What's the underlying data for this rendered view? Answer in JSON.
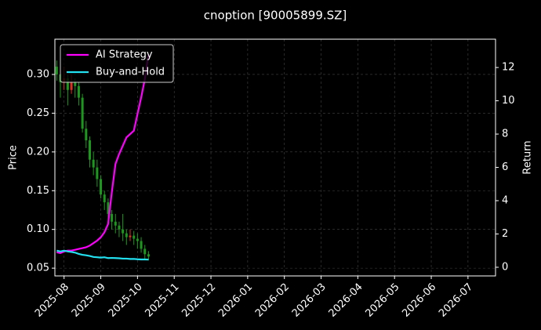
{
  "chart_data": {
    "type": "candlestick",
    "title": "cnoption [90005899.SZ]",
    "ylabel": "Price",
    "y2label": "Return",
    "x": [
      -0.2,
      -0.1,
      0,
      0.1,
      0.2,
      0.3,
      0.4,
      0.5,
      0.6,
      0.7,
      0.8,
      0.9,
      1.0,
      1.1,
      1.2,
      1.3,
      1.4,
      1.5,
      1.6,
      1.7,
      1.8,
      1.9,
      2.0,
      2.1,
      2.2,
      2.3
    ],
    "xlim": [
      -0.25,
      11.75
    ],
    "xticks": [
      {
        "value": 0,
        "label": "2025-08"
      },
      {
        "value": 1,
        "label": "2025-09"
      },
      {
        "value": 2,
        "label": "2025-10"
      },
      {
        "value": 3,
        "label": "2025-11"
      },
      {
        "value": 4,
        "label": "2025-12"
      },
      {
        "value": 5,
        "label": "2026-01"
      },
      {
        "value": 6,
        "label": "2026-02"
      },
      {
        "value": 7,
        "label": "2026-03"
      },
      {
        "value": 8,
        "label": "2026-04"
      },
      {
        "value": 9,
        "label": "2026-05"
      },
      {
        "value": 10,
        "label": "2026-06"
      },
      {
        "value": 11,
        "label": "2026-07"
      }
    ],
    "ylim": [
      0.04,
      0.3455
    ],
    "yticks": [
      {
        "value": 0.05,
        "label": "0.05"
      },
      {
        "value": 0.1,
        "label": "0.10"
      },
      {
        "value": 0.15,
        "label": "0.15"
      },
      {
        "value": 0.2,
        "label": "0.20"
      },
      {
        "value": 0.25,
        "label": "0.25"
      },
      {
        "value": 0.3,
        "label": "0.30"
      }
    ],
    "y2lim": [
      -0.52,
      13.7
    ],
    "y2ticks": [
      0,
      2,
      4,
      6,
      8,
      10,
      12
    ],
    "grid": true,
    "legend": "upper left",
    "up_color": "#e03020",
    "down_color": "#1a9a1a",
    "candles": {
      "open": [
        0.31,
        0.3,
        0.29,
        0.295,
        0.28,
        0.29,
        0.285,
        0.27,
        0.23,
        0.215,
        0.19,
        0.18,
        0.165,
        0.145,
        0.135,
        0.12,
        0.11,
        0.105,
        0.1,
        0.095,
        0.09,
        0.092,
        0.088,
        0.085,
        0.075,
        0.068
      ],
      "high": [
        0.318,
        0.305,
        0.31,
        0.3,
        0.3,
        0.295,
        0.29,
        0.275,
        0.24,
        0.22,
        0.2,
        0.19,
        0.17,
        0.15,
        0.14,
        0.125,
        0.12,
        0.11,
        0.12,
        0.1,
        0.1,
        0.098,
        0.095,
        0.09,
        0.08,
        0.072
      ],
      "low": [
        0.292,
        0.27,
        0.28,
        0.26,
        0.275,
        0.27,
        0.26,
        0.225,
        0.205,
        0.18,
        0.17,
        0.155,
        0.14,
        0.125,
        0.11,
        0.1,
        0.095,
        0.09,
        0.085,
        0.08,
        0.085,
        0.08,
        0.075,
        0.07,
        0.062,
        0.06
      ],
      "close": [
        0.3,
        0.29,
        0.295,
        0.28,
        0.29,
        0.285,
        0.27,
        0.23,
        0.215,
        0.19,
        0.18,
        0.165,
        0.145,
        0.135,
        0.12,
        0.11,
        0.105,
        0.1,
        0.095,
        0.09,
        0.092,
        0.088,
        0.085,
        0.075,
        0.068,
        0.065
      ]
    },
    "series": [
      {
        "name": "AI Strategy",
        "color": "#ff00ff",
        "axis": "y2",
        "values": [
          0.9,
          0.85,
          0.95,
          1.0,
          1.0,
          1.05,
          1.1,
          1.15,
          1.2,
          1.3,
          1.45,
          1.6,
          1.8,
          2.1,
          2.6,
          4.5,
          6.2,
          6.8,
          7.3,
          7.8,
          8.0,
          8.2,
          9.2,
          10.2,
          11.3,
          12.8
        ]
      },
      {
        "name": "Buy-and-Hold",
        "color": "#22e0f0",
        "axis": "y2",
        "values": [
          1.0,
          0.95,
          1.0,
          0.95,
          0.92,
          0.88,
          0.8,
          0.75,
          0.72,
          0.68,
          0.62,
          0.6,
          0.58,
          0.6,
          0.55,
          0.56,
          0.55,
          0.54,
          0.52,
          0.52,
          0.5,
          0.5,
          0.48,
          0.47,
          0.47,
          0.46
        ]
      }
    ]
  }
}
